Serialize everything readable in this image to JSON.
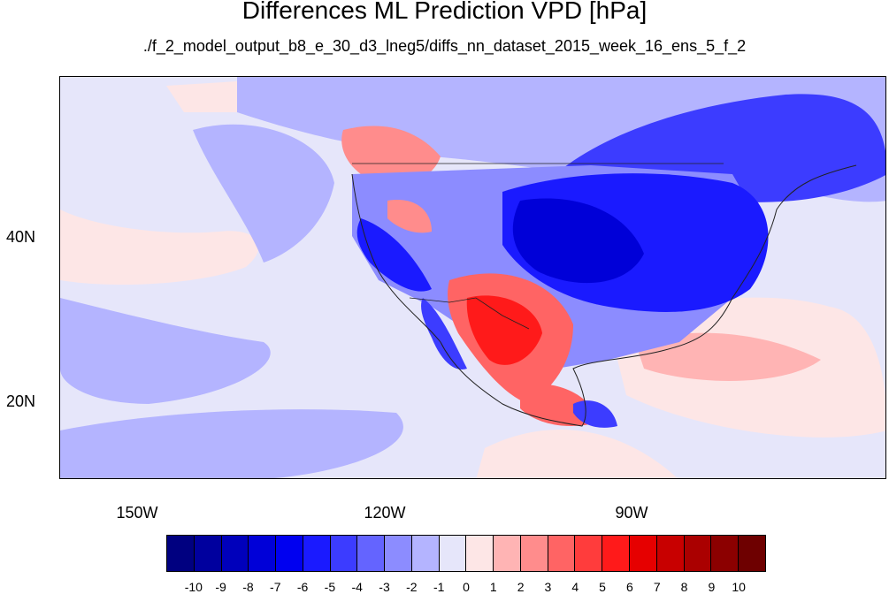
{
  "title": "Differences ML Prediction VPD [hPa]",
  "subtitle": "./f_2_model_output_b8_e_30_d3_lneg5/diffs_nn_dataset_2015_week_16_ens_5_f_2",
  "map": {
    "lat_labels": [
      "40N",
      "20N"
    ],
    "lon_labels": [
      "150W",
      "120W",
      "90W"
    ]
  },
  "colorbar": {
    "labels": [
      "-10",
      "-9",
      "-8",
      "-7",
      "-6",
      "-5",
      "-4",
      "-3",
      "-2",
      "-1",
      "0",
      "1",
      "2",
      "3",
      "4",
      "5",
      "6",
      "7",
      "8",
      "9",
      "10"
    ],
    "colors": [
      "#000080",
      "#00009e",
      "#0000bb",
      "#0000d8",
      "#0000f0",
      "#1a1aff",
      "#3c3cff",
      "#6464ff",
      "#8c8cff",
      "#b4b4ff",
      "#e6e6fa",
      "#fde6e6",
      "#ffb4b4",
      "#ff8c8c",
      "#ff6464",
      "#ff3c3c",
      "#ff1a1a",
      "#e60000",
      "#c80000",
      "#aa0000",
      "#8c0000",
      "#6e0000"
    ]
  }
}
